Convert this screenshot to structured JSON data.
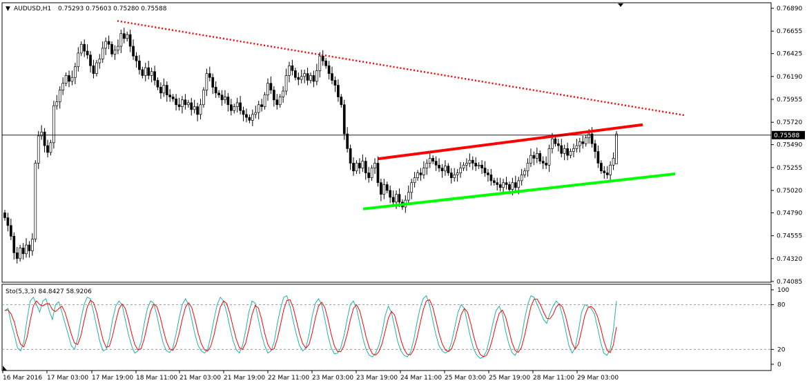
{
  "chart_data": [
    {
      "type": "candlestick",
      "symbol_label": "AUDUSD,H1",
      "ohlc_label": "0.75293 0.75603 0.75280 0.75588",
      "current_price": "0.75588",
      "ylim": [
        0.74085,
        0.7689
      ],
      "y_ticks": [
        "0.76890",
        "0.76655",
        "0.76425",
        "0.76190",
        "0.75955",
        "0.75720",
        "0.75490",
        "0.75255",
        "0.75020",
        "0.74790",
        "0.74555",
        "0.74320",
        "0.74085"
      ],
      "x_ticks": [
        "16 Mar 2016",
        "17 Mar 03:00",
        "17 Mar 19:00",
        "18 Mar 11:00",
        "21 Mar 03:00",
        "21 Mar 19:00",
        "22 Mar 11:00",
        "23 Mar 03:00",
        "23 Mar 19:00",
        "24 Mar 11:00",
        "25 Mar 03:00",
        "25 Mar 19:00",
        "28 Mar 11:00",
        "29 Mar 03:00"
      ],
      "colors": {
        "bull": "#000000",
        "bear": "#000000",
        "bull_fill": "#ffffff",
        "bear_fill": "#000000"
      },
      "trendlines": [
        {
          "style": "dotted",
          "color": "#ff0000",
          "from": [
            0.7676
          ],
          "to": [
            0.7579
          ]
        },
        {
          "style": "solid",
          "color": "#ff0000",
          "from": [
            0.75345
          ],
          "to": [
            0.75695
          ]
        },
        {
          "style": "solid",
          "color": "#00ff00",
          "from": [
            0.7483
          ],
          "to": [
            0.7519
          ]
        }
      ],
      "closes": [
        0.7474,
        0.7466,
        0.7455,
        0.7438,
        0.7432,
        0.7443,
        0.7437,
        0.7446,
        0.744,
        0.7452,
        0.753,
        0.7558,
        0.7562,
        0.7548,
        0.7541,
        0.7551,
        0.7589,
        0.7593,
        0.7605,
        0.7612,
        0.762,
        0.7614,
        0.7618,
        0.7629,
        0.7643,
        0.7652,
        0.7645,
        0.7641,
        0.763,
        0.7622,
        0.7633,
        0.7637,
        0.7648,
        0.7655,
        0.7652,
        0.7642,
        0.7646,
        0.765,
        0.7663,
        0.7658,
        0.7662,
        0.765,
        0.764,
        0.7635,
        0.7626,
        0.762,
        0.7628,
        0.762,
        0.7624,
        0.7615,
        0.7608,
        0.7602,
        0.761,
        0.76,
        0.7598,
        0.7596,
        0.759,
        0.7588,
        0.7595,
        0.759,
        0.7592,
        0.7585,
        0.7588,
        0.758,
        0.759,
        0.7605,
        0.7622,
        0.7618,
        0.7608,
        0.7602,
        0.76,
        0.7595,
        0.7598,
        0.759,
        0.7584,
        0.7588,
        0.7592,
        0.7584,
        0.758,
        0.7577,
        0.7574,
        0.758,
        0.7582,
        0.759,
        0.7588,
        0.76,
        0.7612,
        0.7605,
        0.7595,
        0.759,
        0.7598,
        0.7604,
        0.762,
        0.763,
        0.7625,
        0.7618,
        0.7616,
        0.7619,
        0.7622,
        0.7615,
        0.762,
        0.7614,
        0.7625,
        0.764,
        0.7635,
        0.763,
        0.7622,
        0.7615,
        0.761,
        0.7598,
        0.759,
        0.756,
        0.7545,
        0.753,
        0.7522,
        0.753,
        0.7525,
        0.7532,
        0.752,
        0.7515,
        0.7525,
        0.753,
        0.751,
        0.7498,
        0.7508,
        0.7502,
        0.7495,
        0.749,
        0.7498,
        0.749,
        0.7485,
        0.7492,
        0.75,
        0.751,
        0.7515,
        0.752,
        0.7518,
        0.7525,
        0.753,
        0.7535,
        0.7532,
        0.7528,
        0.7525,
        0.7522,
        0.7527,
        0.752,
        0.7515,
        0.7518,
        0.752,
        0.7525,
        0.7528,
        0.753,
        0.7533,
        0.753,
        0.7527,
        0.7528,
        0.7525,
        0.752,
        0.7518,
        0.7512,
        0.751,
        0.7508,
        0.7505,
        0.751,
        0.7508,
        0.7503,
        0.751,
        0.7505,
        0.7512,
        0.7518,
        0.7522,
        0.753,
        0.7538,
        0.7535,
        0.754,
        0.7532,
        0.753,
        0.7528,
        0.7545,
        0.7555,
        0.755,
        0.7548,
        0.754,
        0.7545,
        0.7538,
        0.7542,
        0.7545,
        0.7548,
        0.7552,
        0.755,
        0.7556,
        0.756,
        0.755,
        0.7542,
        0.753,
        0.7522,
        0.752,
        0.7518,
        0.7528,
        0.7535,
        0.756
      ],
      "stochastic": {
        "label": "Sto(5,3,3) 84.8427 58.9206",
        "levels": [
          "100",
          "80",
          "20",
          "0"
        ],
        "k": [
          72,
          75,
          55,
          40,
          22,
          18,
          30,
          60,
          85,
          90,
          80,
          70,
          85,
          88,
          72,
          60,
          80,
          84,
          70,
          55,
          40,
          25,
          20,
          35,
          60,
          80,
          90,
          88,
          70,
          50,
          30,
          18,
          20,
          35,
          60,
          78,
          85,
          80,
          60,
          40,
          25,
          15,
          18,
          30,
          55,
          75,
          85,
          82,
          65,
          45,
          28,
          18,
          16,
          22,
          40,
          62,
          80,
          88,
          80,
          60,
          40,
          25,
          18,
          15,
          20,
          38,
          60,
          80,
          90,
          85,
          70,
          50,
          32,
          20,
          15,
          25,
          45,
          70,
          85,
          82,
          60,
          40,
          25,
          15,
          18,
          30,
          55,
          75,
          90,
          92,
          78,
          58,
          40,
          25,
          18,
          22,
          40,
          65,
          82,
          88,
          80,
          60,
          38,
          22,
          14,
          15,
          22,
          38,
          60,
          80,
          85,
          75,
          55,
          35,
          20,
          12,
          10,
          15,
          25,
          42,
          65,
          78,
          70,
          50,
          30,
          18,
          12,
          10,
          16,
          32,
          55,
          75,
          88,
          92,
          80,
          60,
          40,
          25,
          18,
          15,
          18,
          30,
          50,
          70,
          80,
          75,
          55,
          35,
          20,
          12,
          8,
          10,
          18,
          35,
          55,
          72,
          78,
          68,
          45,
          28,
          16,
          12,
          20,
          35,
          60,
          80,
          92,
          90,
          80,
          70,
          60,
          55,
          68,
          78,
          85,
          80,
          65,
          45,
          25,
          15,
          22,
          45,
          70,
          80,
          78,
          75,
          68,
          50,
          30,
          15,
          12,
          20,
          45,
          85
        ]
      }
    }
  ]
}
